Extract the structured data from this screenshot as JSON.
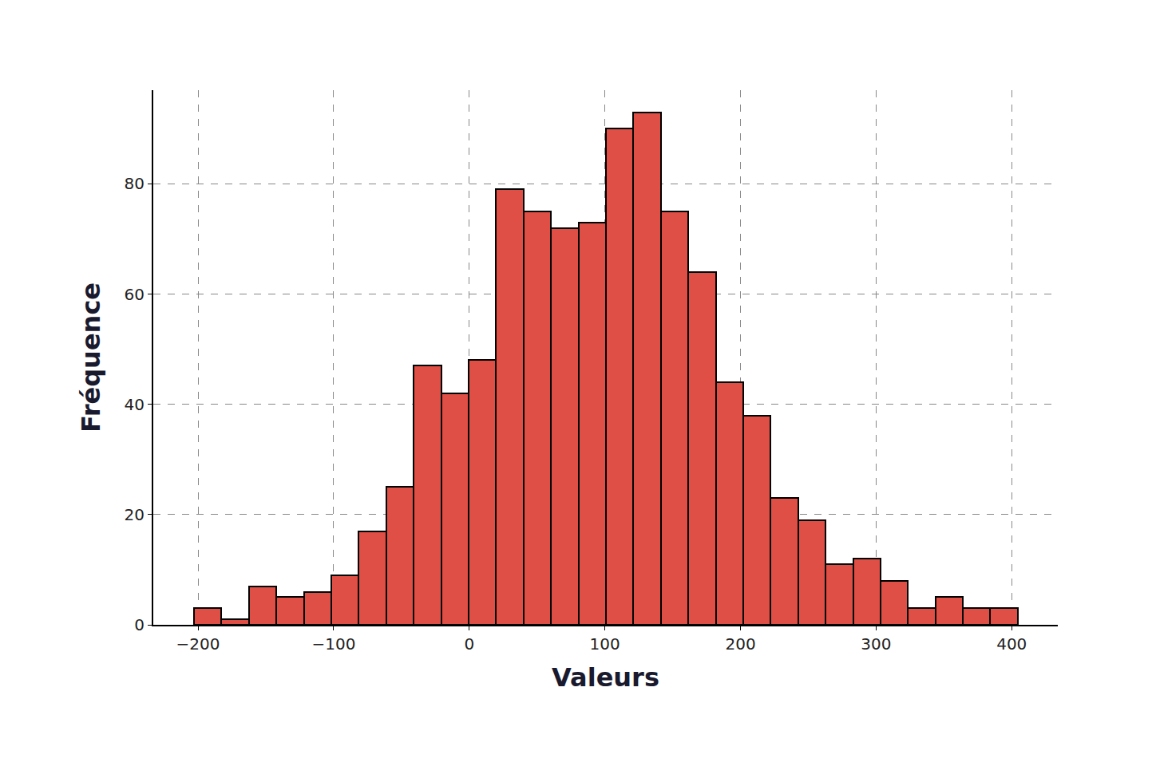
{
  "chart_data": {
    "type": "histogram",
    "x_label": "Valeurs",
    "y_label": "Fréquence",
    "bins": [
      -203,
      -182.75,
      -162.5,
      -142.25,
      -122,
      -101.75,
      -81.5,
      -61.25,
      -41,
      -20.75,
      -0.5,
      19.75,
      40,
      60.25,
      80.5,
      100.75,
      121,
      141.25,
      161.5,
      181.75,
      202,
      222.25,
      242.5,
      262.75,
      283,
      303.25,
      323.5,
      343.75,
      364,
      384.25,
      404.5
    ],
    "values": [
      3,
      1,
      7,
      5,
      6,
      9,
      17,
      25,
      47,
      42,
      48,
      79,
      75,
      72,
      73,
      90,
      93,
      75,
      64,
      44,
      38,
      23,
      19,
      11,
      12,
      8,
      3,
      5,
      3,
      3
    ],
    "color": "#e04f45",
    "xlim": [
      -233,
      434
    ],
    "ylim": [
      0,
      97
    ],
    "xticks": [
      {
        "value": -200,
        "label": "−200"
      },
      {
        "value": -100,
        "label": "−100"
      },
      0,
      100,
      200,
      300,
      400
    ],
    "yticks": [
      0,
      20,
      40,
      60,
      80
    ],
    "grid": true
  }
}
